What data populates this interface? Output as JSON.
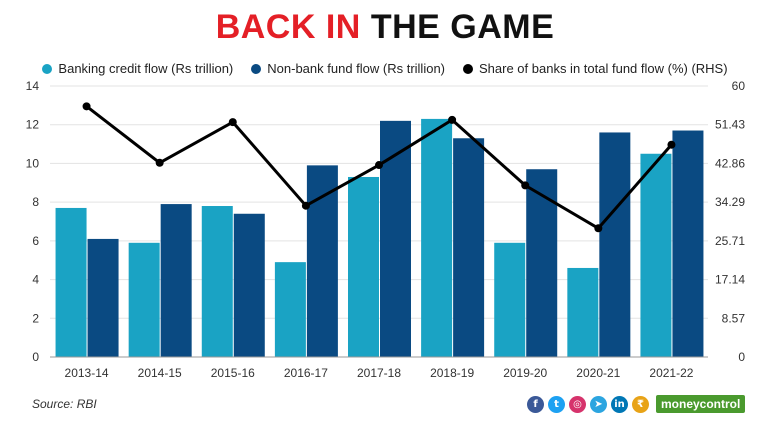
{
  "title": {
    "part1": "BACK IN",
    "part2": "THE GAME"
  },
  "legend": [
    {
      "label": "Banking credit flow (Rs trillion)",
      "color": "#1aa3c4"
    },
    {
      "label": "Non-bank fund flow (Rs trillion)",
      "color": "#0a4a82"
    },
    {
      "label": "Share of banks in total fund flow (%) (RHS)",
      "color": "#000000"
    }
  ],
  "chart_data": {
    "type": "bar",
    "categories": [
      "2013-14",
      "2014-15",
      "2015-16",
      "2016-17",
      "2017-18",
      "2018-19",
      "2019-20",
      "2020-21",
      "2021-22"
    ],
    "series": [
      {
        "name": "Banking credit flow (Rs trillion)",
        "type": "bar",
        "axis": "left",
        "color": "#1aa3c4",
        "values": [
          7.7,
          5.9,
          7.8,
          4.9,
          9.3,
          12.3,
          5.9,
          4.6,
          10.5
        ]
      },
      {
        "name": "Non-bank fund flow (Rs trillion)",
        "type": "bar",
        "axis": "left",
        "color": "#0a4a82",
        "values": [
          6.1,
          7.9,
          7.4,
          9.9,
          12.2,
          11.3,
          9.7,
          11.6,
          11.7
        ]
      },
      {
        "name": "Share of banks in total fund flow (%) (RHS)",
        "type": "line",
        "axis": "right",
        "color": "#000000",
        "values": [
          55.5,
          43.0,
          52.0,
          33.5,
          42.5,
          52.5,
          38.0,
          28.5,
          47.0
        ]
      }
    ],
    "y_left": {
      "min": 0,
      "max": 14,
      "ticks": [
        "0",
        "2",
        "4",
        "6",
        "8",
        "10",
        "12",
        "14"
      ]
    },
    "y_right": {
      "min": 0,
      "max": 60,
      "ticks": [
        "0",
        "8.57",
        "17.14",
        "25.71",
        "34.29",
        "42.86",
        "51.43",
        "60"
      ]
    },
    "grid": true,
    "legend_position": "top"
  },
  "footer": {
    "source": "Source: RBI",
    "brand": "moneycontrol",
    "social_icons": [
      {
        "name": "facebook-icon",
        "glyph": "f",
        "color": "#3b5998"
      },
      {
        "name": "twitter-icon",
        "glyph": "t",
        "color": "#1da1f2"
      },
      {
        "name": "instagram-icon",
        "glyph": "◎",
        "color": "#d6336c"
      },
      {
        "name": "telegram-icon",
        "glyph": "➤",
        "color": "#2ca5e0"
      },
      {
        "name": "linkedin-icon",
        "glyph": "in",
        "color": "#0077b5"
      },
      {
        "name": "moneycontrol-coin-icon",
        "glyph": "₹",
        "color": "#e8a317"
      }
    ]
  }
}
